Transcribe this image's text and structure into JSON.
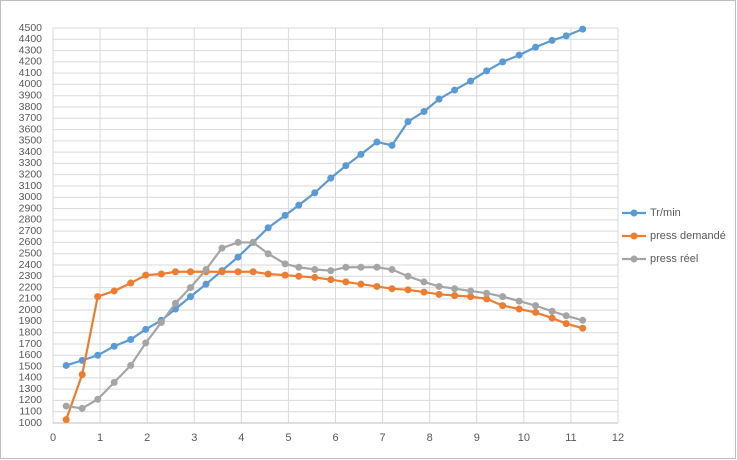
{
  "chart_data": {
    "type": "line",
    "x": [
      0.28,
      0.62,
      0.95,
      1.3,
      1.65,
      1.97,
      2.3,
      2.6,
      2.92,
      3.25,
      3.59,
      3.93,
      4.25,
      4.57,
      4.93,
      5.22,
      5.56,
      5.9,
      6.22,
      6.54,
      6.88,
      7.2,
      7.54,
      7.88,
      8.2,
      8.53,
      8.87,
      9.21,
      9.55,
      9.9,
      10.25,
      10.6,
      10.9,
      11.25
    ],
    "series": [
      {
        "name": "Tr/min",
        "color": "#5b9bd5",
        "values": [
          1510,
          1555,
          1600,
          1680,
          1740,
          1830,
          1910,
          2010,
          2120,
          2230,
          2350,
          2470,
          2600,
          2730,
          2840,
          2930,
          3040,
          3170,
          3280,
          3380,
          3490,
          3460,
          3670,
          3760,
          3870,
          3950,
          4030,
          4120,
          4200,
          4260,
          4330,
          4390,
          4430,
          4490
        ]
      },
      {
        "name": "press demandé",
        "color": "#ed7d31",
        "values": [
          1030,
          1430,
          2120,
          2170,
          2240,
          2310,
          2320,
          2340,
          2340,
          2340,
          2340,
          2340,
          2340,
          2320,
          2310,
          2300,
          2290,
          2270,
          2250,
          2230,
          2210,
          2190,
          2180,
          2160,
          2140,
          2130,
          2120,
          2100,
          2040,
          2010,
          1980,
          1930,
          1880,
          1840
        ]
      },
      {
        "name": "press réel",
        "color": "#a5a5a5",
        "values": [
          1150,
          1130,
          1210,
          1360,
          1510,
          1710,
          1890,
          2060,
          2200,
          2360,
          2550,
          2600,
          2600,
          2500,
          2410,
          2380,
          2360,
          2350,
          2380,
          2380,
          2380,
          2360,
          2300,
          2250,
          2210,
          2190,
          2170,
          2150,
          2120,
          2080,
          2040,
          1990,
          1950,
          1910
        ]
      }
    ],
    "xlim": [
      0,
      12
    ],
    "xticks": [
      0,
      1,
      2,
      3,
      4,
      5,
      6,
      7,
      8,
      9,
      10,
      11,
      12
    ],
    "ylim": [
      1000,
      4500
    ],
    "yticks": [
      1000,
      1100,
      1200,
      1300,
      1400,
      1500,
      1600,
      1700,
      1800,
      1900,
      2000,
      2100,
      2200,
      2300,
      2400,
      2500,
      2600,
      2700,
      2800,
      2900,
      3000,
      3100,
      3200,
      3300,
      3400,
      3500,
      3600,
      3700,
      3800,
      3900,
      4000,
      4100,
      4200,
      4300,
      4400,
      4500
    ],
    "grid": true,
    "legend": "right"
  }
}
